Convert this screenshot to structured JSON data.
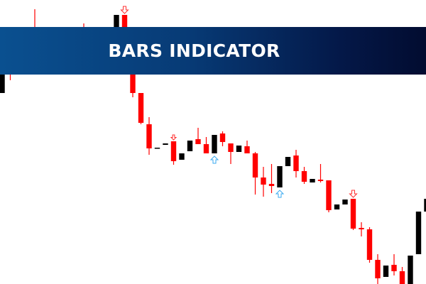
{
  "banner": {
    "title": "BARS INDICATOR"
  },
  "colors": {
    "bull": "#000000",
    "bear": "#ff0000",
    "signal_up": "#3aaaf0",
    "signal_down": "#ff3030",
    "banner_left": "#0a5090",
    "banner_right": "#020c30"
  },
  "chart_data": {
    "type": "candlestick",
    "title": "",
    "xlabel": "",
    "ylabel": "",
    "ylim": [
      0,
      400
    ],
    "grid": false,
    "candles": [
      {
        "i": 0,
        "o": 269,
        "h": 305,
        "l": 269,
        "c": 305
      },
      {
        "i": 1,
        "o": 310,
        "h": 330,
        "l": 287,
        "c": 300
      },
      {
        "i": 4,
        "o": 355,
        "h": 387,
        "l": 315,
        "c": 320
      },
      {
        "i": 10,
        "o": 355,
        "h": 367,
        "l": 325,
        "c": 330
      },
      {
        "i": 14,
        "o": 340,
        "h": 379,
        "l": 340,
        "c": 379
      },
      {
        "i": 15,
        "o": 379,
        "h": 379,
        "l": 305,
        "c": 310,
        "signal": "down"
      },
      {
        "i": 16,
        "o": 310,
        "h": 312,
        "l": 263,
        "c": 269
      },
      {
        "i": 17,
        "o": 269,
        "h": 269,
        "l": 225,
        "c": 227
      },
      {
        "i": 18,
        "o": 225,
        "h": 235,
        "l": 182,
        "c": 191
      },
      {
        "i": 19,
        "o": 192,
        "h": 192,
        "l": 192,
        "c": 192
      },
      {
        "i": 20,
        "o": 196,
        "h": 198,
        "l": 196,
        "c": 198
      },
      {
        "i": 21,
        "o": 201,
        "h": 201,
        "l": 168,
        "c": 173,
        "signal": "down-small"
      },
      {
        "i": 22,
        "o": 175,
        "h": 184,
        "l": 175,
        "c": 184
      },
      {
        "i": 23,
        "o": 187,
        "h": 202,
        "l": 187,
        "c": 202
      },
      {
        "i": 24,
        "o": 204,
        "h": 220,
        "l": 197,
        "c": 197
      },
      {
        "i": 25,
        "o": 197,
        "h": 207,
        "l": 184,
        "c": 184
      },
      {
        "i": 26,
        "o": 184,
        "h": 210,
        "l": 184,
        "c": 210,
        "signal": "up"
      },
      {
        "i": 27,
        "o": 212,
        "h": 215,
        "l": 194,
        "c": 200
      },
      {
        "i": 28,
        "o": 198,
        "h": 198,
        "l": 169,
        "c": 186
      },
      {
        "i": 29,
        "o": 186,
        "h": 195,
        "l": 186,
        "c": 195
      },
      {
        "i": 30,
        "o": 194,
        "h": 202,
        "l": 184,
        "c": 184
      },
      {
        "i": 31,
        "o": 184,
        "h": 186,
        "l": 126,
        "c": 150
      },
      {
        "i": 32,
        "o": 150,
        "h": 165,
        "l": 123,
        "c": 140
      },
      {
        "i": 33,
        "o": 141,
        "h": 169,
        "l": 128,
        "c": 138
      },
      {
        "i": 34,
        "o": 136,
        "h": 166,
        "l": 136,
        "c": 166,
        "signal": "up"
      },
      {
        "i": 35,
        "o": 166,
        "h": 179,
        "l": 166,
        "c": 179
      },
      {
        "i": 36,
        "o": 181,
        "h": 189,
        "l": 150,
        "c": 159
      },
      {
        "i": 37,
        "o": 159,
        "h": 165,
        "l": 141,
        "c": 144
      },
      {
        "i": 38,
        "o": 143,
        "h": 148,
        "l": 143,
        "c": 148
      },
      {
        "i": 39,
        "o": 147,
        "h": 169,
        "l": 143,
        "c": 145
      },
      {
        "i": 40,
        "o": 146,
        "h": 146,
        "l": 101,
        "c": 104
      },
      {
        "i": 41,
        "o": 105,
        "h": 112,
        "l": 105,
        "c": 112
      },
      {
        "i": 42,
        "o": 112,
        "h": 119,
        "l": 112,
        "c": 119
      },
      {
        "i": 43,
        "o": 120,
        "h": 120,
        "l": 76,
        "c": 78,
        "signal": "down"
      },
      {
        "i": 44,
        "o": 79,
        "h": 87,
        "l": 67,
        "c": 77
      },
      {
        "i": 45,
        "o": 77,
        "h": 80,
        "l": 30,
        "c": 34
      },
      {
        "i": 46,
        "o": 34,
        "h": 42,
        "l": 0,
        "c": 8
      },
      {
        "i": 47,
        "o": 10,
        "h": 26,
        "l": 10,
        "c": 26
      },
      {
        "i": 48,
        "o": 27,
        "h": 42,
        "l": 12,
        "c": 18
      },
      {
        "i": 49,
        "o": 18,
        "h": 24,
        "l": -5,
        "c": -5
      },
      {
        "i": 50,
        "o": -5,
        "h": 40,
        "l": -5,
        "c": 40
      },
      {
        "i": 51,
        "o": 42,
        "h": 102,
        "l": 42,
        "c": 102
      },
      {
        "i": 52,
        "o": 102,
        "h": 120,
        "l": 102,
        "c": 120
      }
    ]
  }
}
